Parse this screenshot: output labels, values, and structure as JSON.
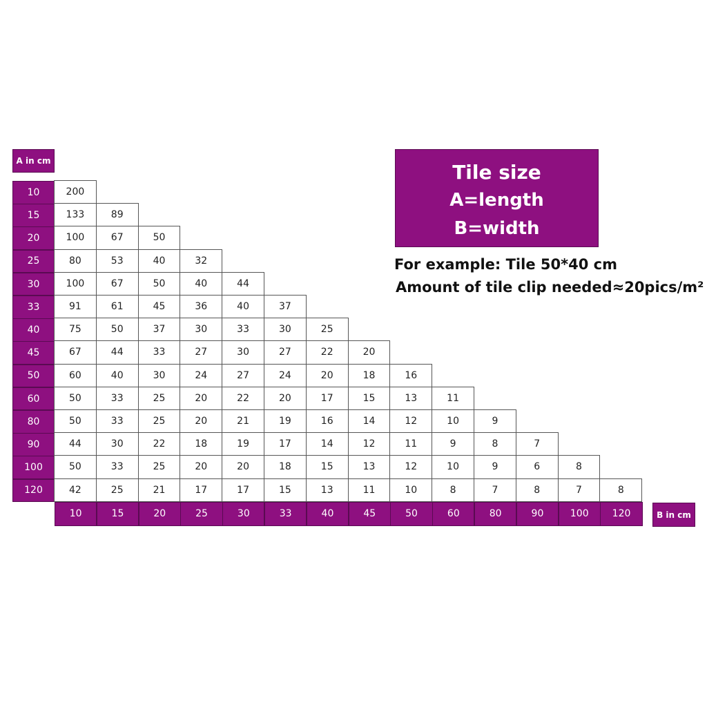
{
  "chart_data": {
    "type": "table",
    "row_axis_label": "A in cm",
    "column_axis_label": "B in cm",
    "rows": [
      10,
      15,
      20,
      25,
      30,
      33,
      40,
      45,
      50,
      60,
      80,
      90,
      100,
      120
    ],
    "columns": [
      10,
      15,
      20,
      25,
      30,
      33,
      40,
      45,
      50,
      60,
      80,
      90,
      100,
      120
    ],
    "values": [
      [
        200
      ],
      [
        133,
        89
      ],
      [
        100,
        67,
        50
      ],
      [
        80,
        53,
        40,
        32
      ],
      [
        100,
        67,
        50,
        40,
        44
      ],
      [
        91,
        61,
        45,
        36,
        40,
        37
      ],
      [
        75,
        50,
        37,
        30,
        33,
        30,
        25
      ],
      [
        67,
        44,
        33,
        27,
        30,
        27,
        22,
        20
      ],
      [
        60,
        40,
        30,
        24,
        27,
        24,
        20,
        18,
        16
      ],
      [
        50,
        33,
        25,
        20,
        22,
        20,
        17,
        15,
        13,
        11
      ],
      [
        50,
        33,
        25,
        20,
        21,
        19,
        16,
        14,
        12,
        10,
        9
      ],
      [
        44,
        30,
        22,
        18,
        19,
        17,
        14,
        12,
        11,
        9,
        8,
        7
      ],
      [
        50,
        33,
        25,
        20,
        20,
        18,
        15,
        13,
        12,
        10,
        9,
        6,
        8
      ],
      [
        42,
        25,
        21,
        17,
        17,
        15,
        13,
        11,
        10,
        8,
        7,
        8,
        7,
        8
      ]
    ]
  },
  "info": {
    "title": "Tile size",
    "line1": "A=length",
    "line2": "B=width"
  },
  "notes": {
    "example": "For example: Tile 50*40 cm",
    "amount": "Amount of tile clip needed≈20pics/m²"
  },
  "colors": {
    "accent": "#8e1080"
  }
}
